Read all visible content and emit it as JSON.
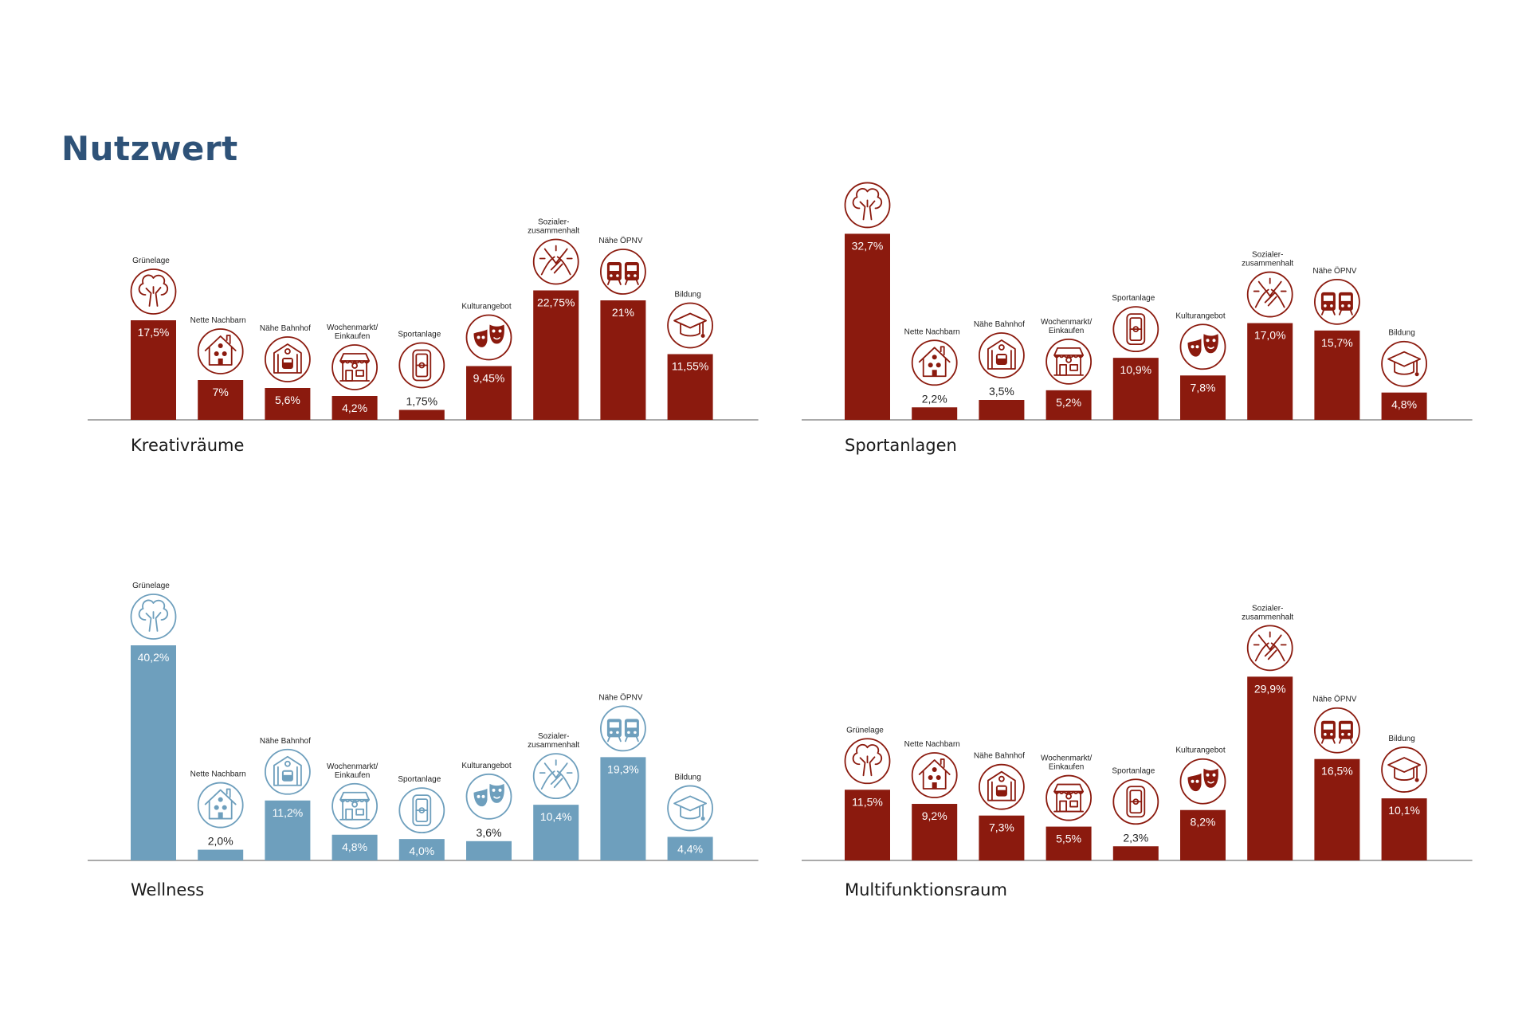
{
  "page": {
    "title": "Nutzwert"
  },
  "icons": [
    "tree-icon",
    "house-neighbors-icon",
    "train-station-icon",
    "market-stall-icon",
    "sports-field-icon",
    "theater-masks-icon",
    "joined-hands-icon",
    "bus-train-icon",
    "graduation-cap-icon"
  ],
  "colors": {
    "primary": "#8b1a0e",
    "secondary": "#6e9fbd",
    "title": "#2e5278"
  },
  "chart_data": [
    {
      "type": "bar",
      "title": "Kreativräume",
      "color": "#8b1a0e",
      "categories": [
        "Grünelage",
        "Nette Nachbarn",
        "Nähe Bahnhof",
        "Wochenmarkt/\nEinkaufen",
        "Sportanlage",
        "Kulturangebot",
        "Sozialer-\nzusammenhalt",
        "Nähe ÖPNV",
        "Bildung"
      ],
      "values": [
        17.5,
        7,
        5.6,
        4.2,
        1.75,
        9.45,
        22.75,
        21,
        11.55
      ],
      "value_labels": [
        "17,5%",
        "7%",
        "5,6%",
        "4,2%",
        "1,75%",
        "9,45%",
        "22,75%",
        "21%",
        "11,55%"
      ],
      "ylim": [
        0,
        35
      ]
    },
    {
      "type": "bar",
      "title": "Sportanlagen",
      "color": "#8b1a0e",
      "categories": [
        "",
        "Nette Nachbarn",
        "Nähe Bahnhof",
        "Wochenmarkt/\nEinkaufen",
        "Sportanlage",
        "Kulturangebot",
        "Sozialer-\nzusammenhalt",
        "Nähe ÖPNV",
        "Bildung"
      ],
      "values": [
        32.7,
        2.2,
        3.5,
        5.2,
        10.9,
        7.8,
        17.0,
        15.7,
        4.8
      ],
      "value_labels": [
        "32,7%",
        "2,2%",
        "3,5%",
        "5,2%",
        "10,9%",
        "7,8%",
        "17,0%",
        "15,7%",
        "4,8%"
      ],
      "ylim": [
        0,
        35
      ]
    },
    {
      "type": "bar",
      "title": "Wellness",
      "color": "#6e9fbd",
      "categories": [
        "Grünelage",
        "Nette Nachbarn",
        "Nähe Bahnhof",
        "Wochenmarkt/\nEinkaufen",
        "Sportanlage",
        "Kulturangebot",
        "Sozialer-\nzusammenhalt",
        "Nähe ÖPNV",
        "Bildung"
      ],
      "values": [
        40.2,
        2.0,
        11.2,
        4.8,
        4.0,
        3.6,
        10.4,
        19.3,
        4.4
      ],
      "value_labels": [
        "40,2%",
        "2,0%",
        "11,2%",
        "4,8%",
        "4,0%",
        "3,6%",
        "10,4%",
        "19,3%",
        "4,4%"
      ],
      "ylim": [
        0,
        40.2
      ]
    },
    {
      "type": "bar",
      "title": "Multifunktionsraum",
      "color": "#8b1a0e",
      "categories": [
        "Grünelage",
        "Nette Nachbarn",
        "Nähe Bahnhof",
        "Wochenmarkt/\nEinkaufen",
        "Sportanlage",
        "Kulturangebot",
        "Sozialer-\nzusammenhalt",
        "Nähe ÖPNV",
        "Bildung"
      ],
      "values": [
        11.5,
        9.2,
        7.3,
        5.5,
        2.3,
        8.2,
        29.9,
        16.5,
        10.1
      ],
      "value_labels": [
        "11,5%",
        "9,2%",
        "7,3%",
        "5,5%",
        "2,3%",
        "8,2%",
        "29,9%",
        "16,5%",
        "10,1%"
      ],
      "ylim": [
        0,
        35
      ]
    }
  ]
}
